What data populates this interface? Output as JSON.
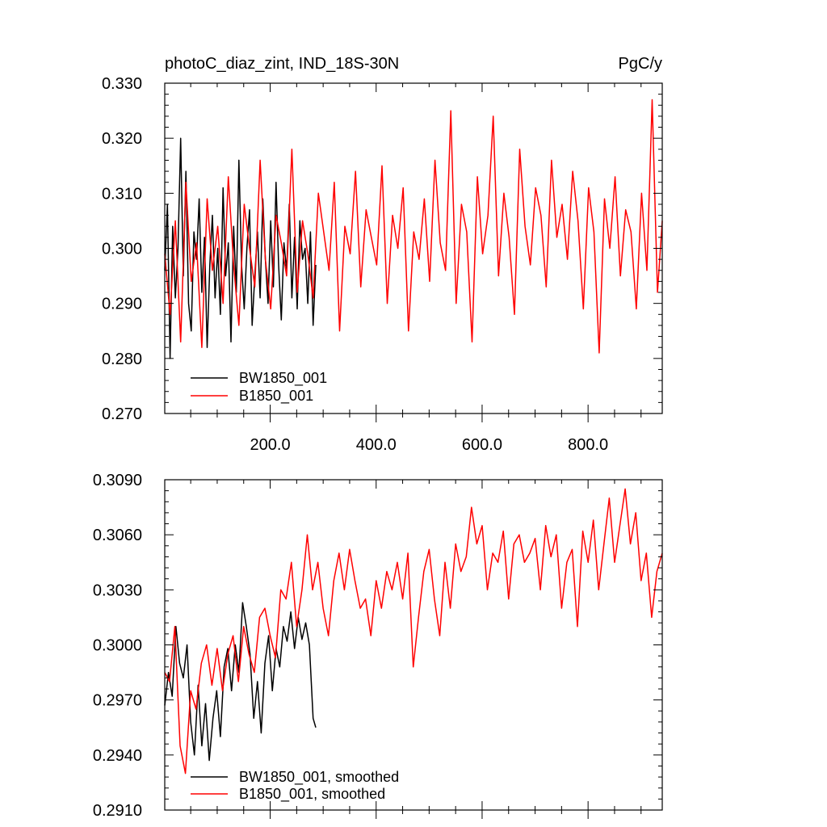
{
  "chart_data": [
    {
      "type": "line",
      "title": "photoC_diaz_zint, IND_18S-30N",
      "units": "PgC/y",
      "xlim": [
        1,
        940
      ],
      "ylim": [
        0.27,
        0.33
      ],
      "x_ticks": [
        200,
        400,
        600,
        800
      ],
      "x_tick_labels": [
        "200.0",
        "400.0",
        "600.0",
        "800.0"
      ],
      "y_ticks": [
        0.27,
        0.28,
        0.29,
        0.3,
        0.31,
        0.32,
        0.33
      ],
      "y_tick_labels": [
        "0.270",
        "0.280",
        "0.290",
        "0.300",
        "0.310",
        "0.320",
        "0.330"
      ],
      "grid": false,
      "legend_position": "bottom-left",
      "series": [
        {
          "name": "BW1850_001",
          "color": "#000000",
          "x": [
            1,
            6,
            11,
            16,
            21,
            26,
            31,
            36,
            41,
            46,
            51,
            56,
            61,
            66,
            71,
            76,
            81,
            86,
            91,
            96,
            101,
            106,
            111,
            116,
            121,
            126,
            131,
            136,
            141,
            146,
            151,
            156,
            161,
            166,
            171,
            176,
            181,
            186,
            191,
            196,
            201,
            206,
            211,
            216,
            221,
            226,
            231,
            236,
            241,
            246,
            251,
            256,
            261,
            266,
            271,
            276,
            281,
            286
          ],
          "values": [
            0.296,
            0.308,
            0.28,
            0.304,
            0.291,
            0.3,
            0.32,
            0.295,
            0.314,
            0.29,
            0.285,
            0.303,
            0.298,
            0.309,
            0.292,
            0.302,
            0.282,
            0.297,
            0.306,
            0.291,
            0.3,
            0.288,
            0.311,
            0.295,
            0.301,
            0.283,
            0.304,
            0.292,
            0.316,
            0.297,
            0.289,
            0.3,
            0.307,
            0.286,
            0.295,
            0.303,
            0.291,
            0.309,
            0.298,
            0.29,
            0.305,
            0.293,
            0.312,
            0.297,
            0.287,
            0.301,
            0.296,
            0.308,
            0.291,
            0.302,
            0.289,
            0.305,
            0.298,
            0.3,
            0.29,
            0.303,
            0.286,
            0.297
          ]
        },
        {
          "name": "B1850_001",
          "color": "#ff0000",
          "x": [
            1,
            11,
            21,
            31,
            41,
            51,
            61,
            71,
            81,
            91,
            101,
            111,
            121,
            131,
            141,
            151,
            161,
            171,
            181,
            191,
            201,
            211,
            221,
            231,
            241,
            251,
            261,
            271,
            281,
            291,
            301,
            311,
            321,
            331,
            341,
            351,
            361,
            371,
            381,
            391,
            401,
            411,
            421,
            431,
            441,
            451,
            461,
            471,
            481,
            491,
            501,
            511,
            521,
            531,
            541,
            551,
            561,
            571,
            581,
            591,
            601,
            611,
            621,
            631,
            641,
            651,
            661,
            671,
            681,
            691,
            701,
            711,
            721,
            731,
            741,
            751,
            761,
            771,
            781,
            791,
            801,
            811,
            821,
            831,
            841,
            851,
            861,
            871,
            881,
            891,
            901,
            911,
            921,
            931,
            940
          ],
          "values": [
            0.299,
            0.288,
            0.305,
            0.283,
            0.312,
            0.294,
            0.301,
            0.282,
            0.309,
            0.296,
            0.304,
            0.29,
            0.313,
            0.297,
            0.286,
            0.308,
            0.3,
            0.293,
            0.316,
            0.298,
            0.289,
            0.306,
            0.301,
            0.295,
            0.318,
            0.292,
            0.305,
            0.299,
            0.291,
            0.31,
            0.303,
            0.296,
            0.312,
            0.285,
            0.304,
            0.299,
            0.314,
            0.293,
            0.307,
            0.302,
            0.297,
            0.315,
            0.29,
            0.306,
            0.3,
            0.311,
            0.285,
            0.303,
            0.298,
            0.309,
            0.294,
            0.316,
            0.301,
            0.296,
            0.325,
            0.29,
            0.308,
            0.303,
            0.283,
            0.313,
            0.299,
            0.306,
            0.324,
            0.295,
            0.31,
            0.302,
            0.288,
            0.318,
            0.304,
            0.297,
            0.311,
            0.306,
            0.293,
            0.316,
            0.302,
            0.308,
            0.298,
            0.314,
            0.305,
            0.289,
            0.311,
            0.303,
            0.281,
            0.309,
            0.3,
            0.313,
            0.295,
            0.307,
            0.303,
            0.289,
            0.31,
            0.296,
            0.327,
            0.292,
            0.305
          ]
        }
      ]
    },
    {
      "type": "line",
      "xlim": [
        1,
        940
      ],
      "ylim": [
        0.291,
        0.309
      ],
      "y_ticks": [
        0.291,
        0.294,
        0.297,
        0.3,
        0.303,
        0.306,
        0.309
      ],
      "y_tick_labels": [
        "0.2910",
        "0.2940",
        "0.2970",
        "0.3000",
        "0.3030",
        "0.3060",
        "0.3090"
      ],
      "grid": false,
      "legend_position": "bottom-left",
      "series": [
        {
          "name": "BW1850_001, smoothed",
          "color": "#000000",
          "x": [
            1,
            8,
            15,
            22,
            29,
            36,
            43,
            50,
            57,
            64,
            71,
            78,
            85,
            92,
            99,
            106,
            113,
            120,
            127,
            134,
            141,
            148,
            155,
            162,
            169,
            176,
            183,
            190,
            197,
            204,
            211,
            218,
            225,
            232,
            239,
            246,
            253,
            260,
            267,
            274,
            281,
            286
          ],
          "values": [
            0.2967,
            0.2985,
            0.2972,
            0.301,
            0.299,
            0.2982,
            0.3,
            0.2958,
            0.294,
            0.2978,
            0.2945,
            0.2968,
            0.2937,
            0.296,
            0.2975,
            0.295,
            0.2988,
            0.2998,
            0.2975,
            0.3,
            0.2985,
            0.3023,
            0.301,
            0.2995,
            0.296,
            0.298,
            0.2952,
            0.299,
            0.3005,
            0.2975,
            0.2998,
            0.2988,
            0.301,
            0.3002,
            0.3018,
            0.2998,
            0.3015,
            0.3003,
            0.3012,
            0.3,
            0.296,
            0.2955
          ]
        },
        {
          "name": "B1850_001, smoothed",
          "color": "#ff0000",
          "x": [
            1,
            10,
            20,
            30,
            40,
            50,
            60,
            70,
            80,
            90,
            100,
            110,
            120,
            130,
            140,
            150,
            160,
            170,
            180,
            190,
            200,
            210,
            220,
            230,
            240,
            250,
            260,
            270,
            280,
            290,
            300,
            310,
            320,
            330,
            340,
            350,
            360,
            370,
            380,
            390,
            400,
            410,
            420,
            430,
            440,
            450,
            460,
            470,
            480,
            490,
            500,
            510,
            520,
            530,
            540,
            550,
            560,
            570,
            580,
            590,
            600,
            610,
            620,
            630,
            640,
            650,
            660,
            670,
            680,
            690,
            700,
            710,
            720,
            730,
            740,
            750,
            760,
            770,
            780,
            790,
            800,
            810,
            820,
            830,
            840,
            850,
            860,
            870,
            880,
            890,
            900,
            910,
            920,
            930,
            940
          ],
          "values": [
            0.2985,
            0.298,
            0.301,
            0.2945,
            0.293,
            0.2975,
            0.2965,
            0.299,
            0.3,
            0.2978,
            0.2998,
            0.2975,
            0.2995,
            0.3005,
            0.298,
            0.301,
            0.2995,
            0.2985,
            0.3015,
            0.302,
            0.3005,
            0.2993,
            0.303,
            0.3025,
            0.3045,
            0.301,
            0.303,
            0.306,
            0.303,
            0.3045,
            0.302,
            0.3005,
            0.3035,
            0.305,
            0.303,
            0.3052,
            0.3035,
            0.302,
            0.3025,
            0.3005,
            0.3035,
            0.302,
            0.304,
            0.303,
            0.3045,
            0.3025,
            0.305,
            0.2988,
            0.3015,
            0.304,
            0.3052,
            0.3025,
            0.3005,
            0.3045,
            0.302,
            0.3055,
            0.304,
            0.3048,
            0.3075,
            0.3055,
            0.3065,
            0.303,
            0.305,
            0.3045,
            0.3062,
            0.3025,
            0.3055,
            0.306,
            0.3045,
            0.305,
            0.3058,
            0.303,
            0.3065,
            0.3048,
            0.306,
            0.302,
            0.3045,
            0.3052,
            0.301,
            0.3062,
            0.3045,
            0.3068,
            0.303,
            0.3055,
            0.308,
            0.3045,
            0.3065,
            0.3085,
            0.3055,
            0.3072,
            0.3035,
            0.305,
            0.3015,
            0.304,
            0.305
          ]
        }
      ]
    }
  ]
}
